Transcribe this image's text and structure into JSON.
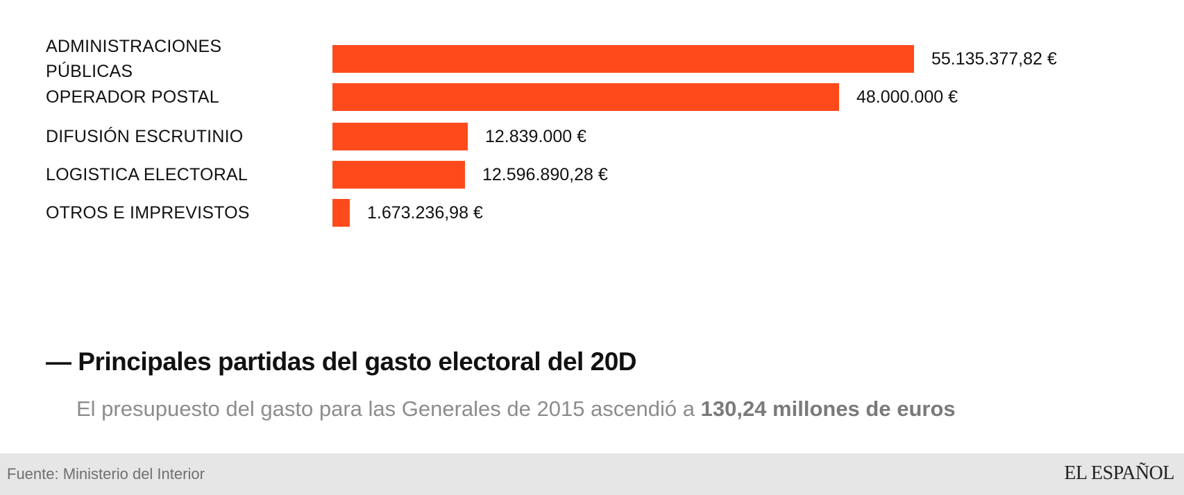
{
  "chart_data": {
    "type": "bar",
    "orientation": "horizontal",
    "categories": [
      [
        "ADMINISTRACIONES",
        "PÚBLICAS"
      ],
      [
        "OPERADOR POSTAL"
      ],
      [
        "DIFUSIÓN ESCRUTINIO"
      ],
      [
        "LOGISTICA ELECTORAL"
      ],
      [
        "OTROS E IMPREVISTOS"
      ]
    ],
    "values": [
      55135377.82,
      48000000,
      12839000,
      12596890.28,
      1673236.98
    ],
    "value_labels": [
      "55.135.377,82 €",
      "48.000.000 €",
      "12.839.000 €",
      "12.596.890,28 €",
      "1.673.236,98 €"
    ],
    "bar_color": "#ff4a1c",
    "grid": false,
    "legend": false
  },
  "header": {
    "title_dash": "—",
    "title": "Principales partidas del gasto electoral del 20D",
    "subtitle_prefix": "El presupuesto del gasto para las Generales de 2015 ascendió a ",
    "subtitle_emphasis": "130,24 millones de euros"
  },
  "footer": {
    "source": "Fuente: Ministerio del Interior",
    "brand": "EL ESPAÑOL"
  }
}
